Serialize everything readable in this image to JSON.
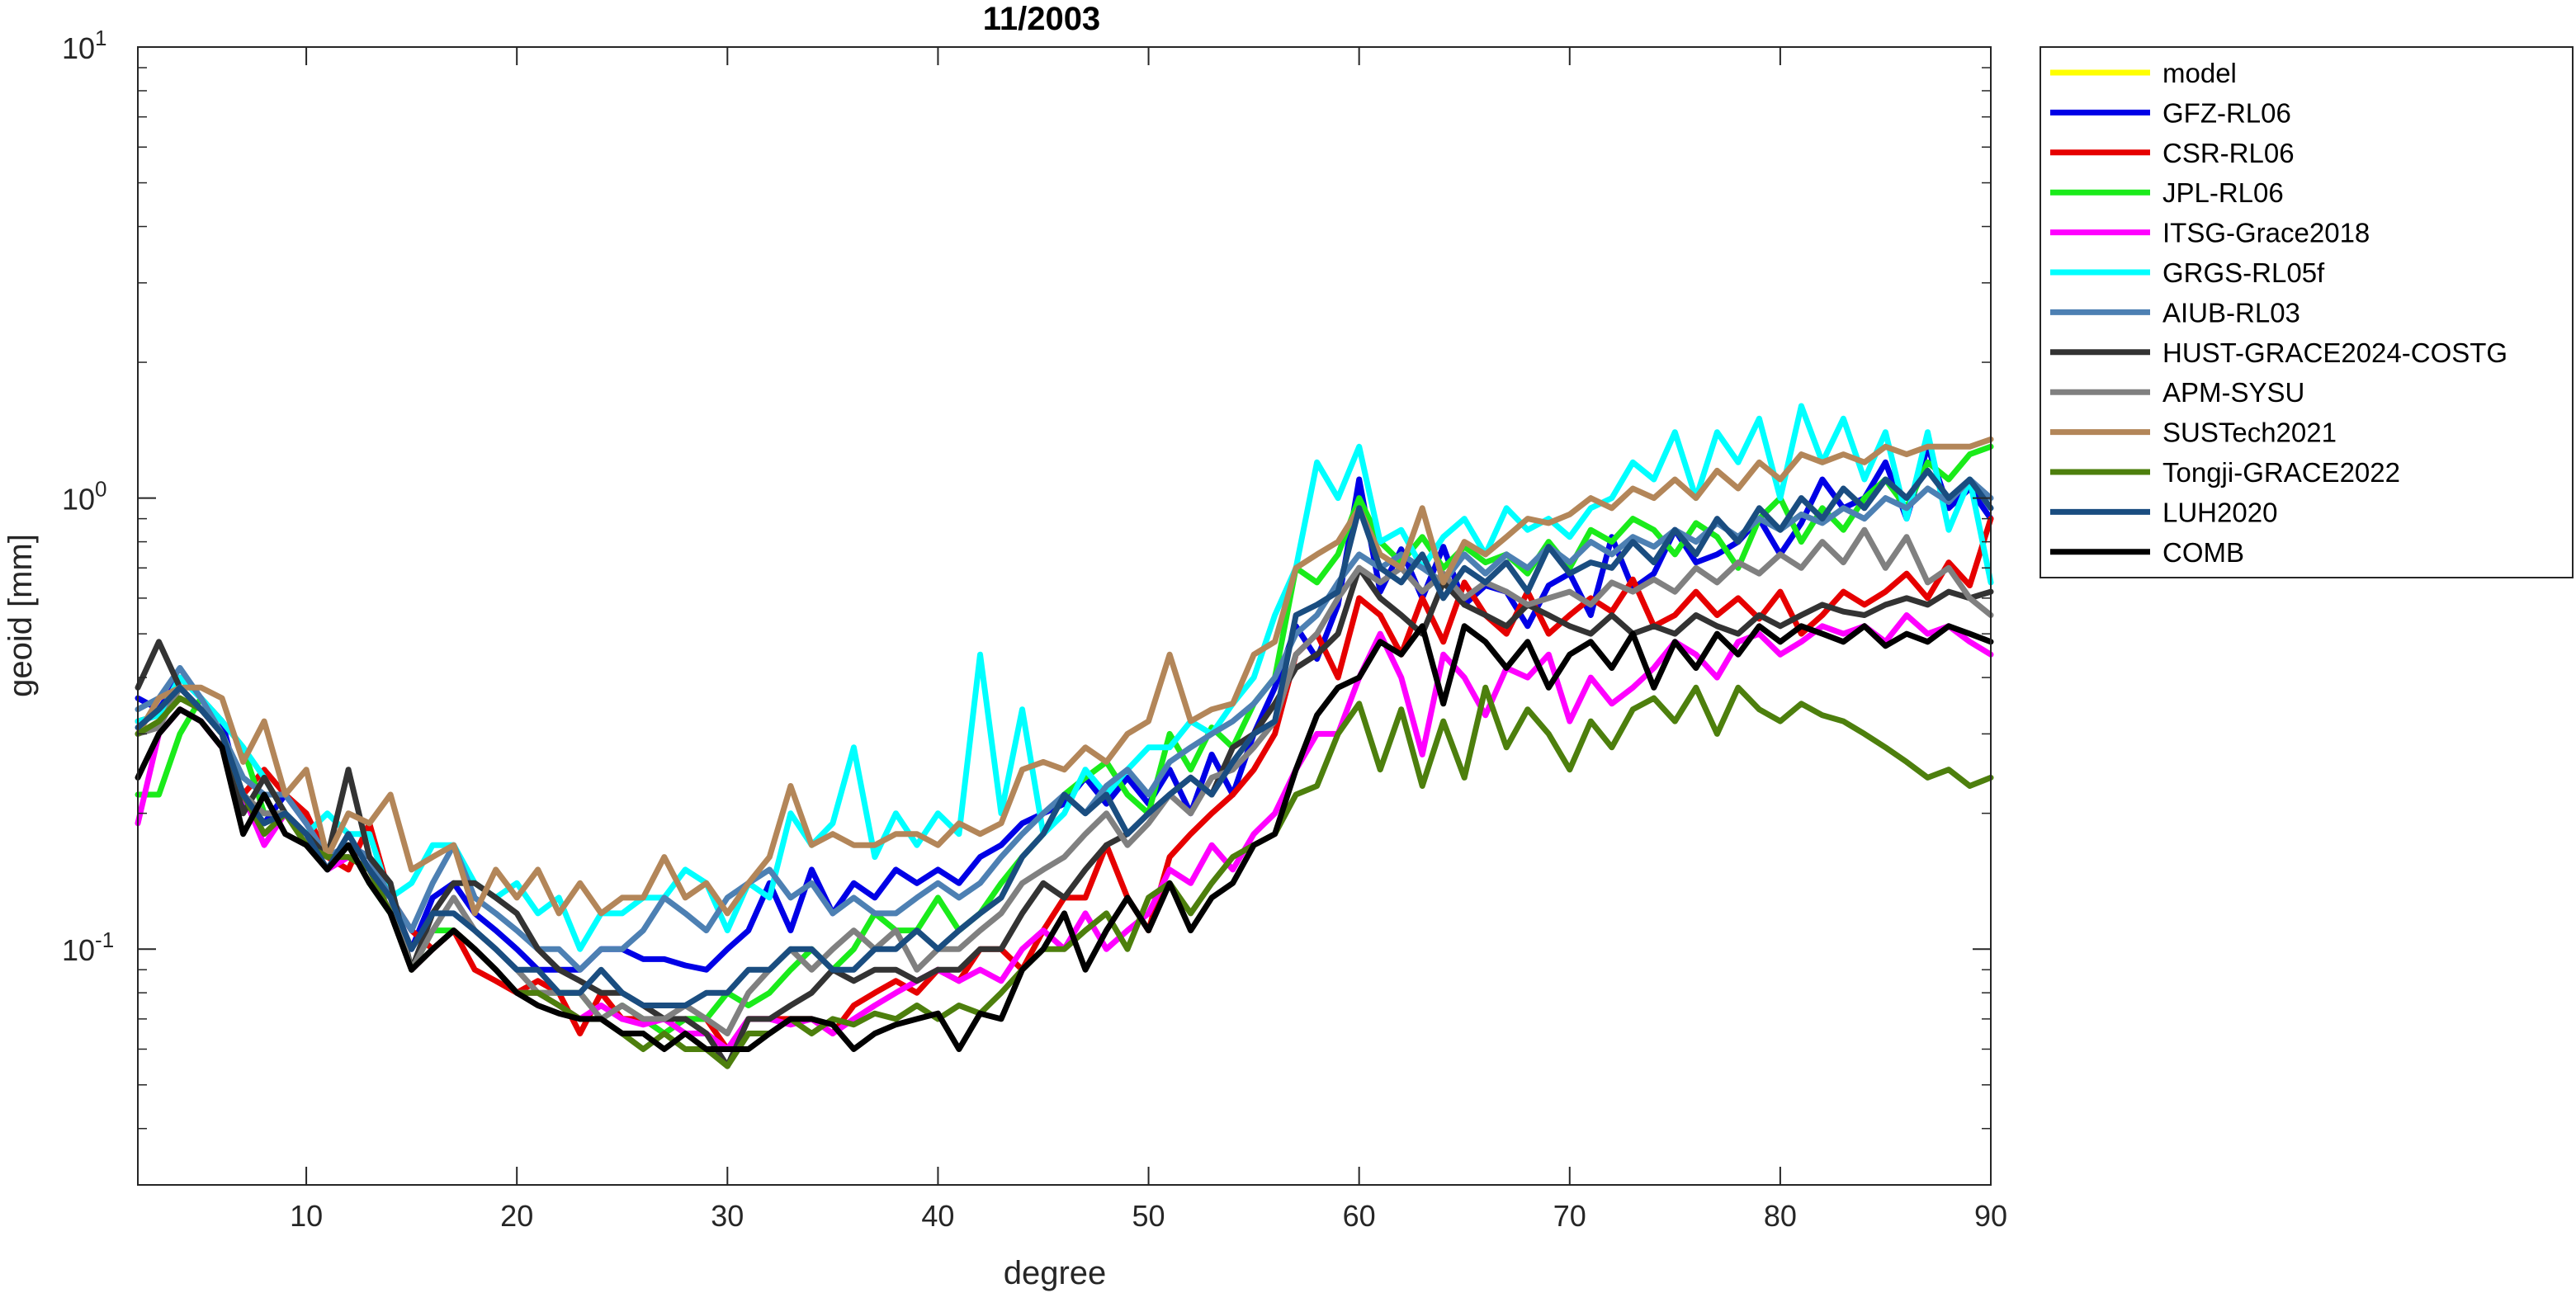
{
  "chart_data": {
    "type": "line",
    "title": "11/2003",
    "xlabel": "degree",
    "ylabel": "geoid [mm]",
    "yscale": "log",
    "xlim": [
      2,
      90
    ],
    "ylim": [
      0.03,
      10
    ],
    "xticks": [
      10,
      20,
      30,
      40,
      50,
      60,
      70,
      80,
      90
    ],
    "yticks": [
      {
        "value": 0.1,
        "base": "10",
        "exp": "-1"
      },
      {
        "value": 1,
        "base": "10",
        "exp": "0"
      },
      {
        "value": 10,
        "base": "10",
        "exp": "1"
      }
    ],
    "grid": false,
    "legend_position": "outside-right-top",
    "x_start": 2,
    "series": [
      {
        "name": "model",
        "color": "#ffff00",
        "values": []
      },
      {
        "name": "GFZ-RL06",
        "color": "#0000e6",
        "values": [
          0.36,
          0.34,
          0.4,
          0.36,
          0.32,
          0.21,
          0.19,
          0.22,
          0.19,
          0.16,
          0.17,
          0.16,
          0.13,
          0.1,
          0.13,
          0.14,
          0.12,
          0.11,
          0.1,
          0.09,
          0.09,
          0.09,
          0.1,
          0.1,
          0.095,
          0.095,
          0.092,
          0.09,
          0.1,
          0.11,
          0.14,
          0.11,
          0.15,
          0.12,
          0.14,
          0.13,
          0.15,
          0.14,
          0.15,
          0.14,
          0.16,
          0.17,
          0.19,
          0.2,
          0.21,
          0.24,
          0.21,
          0.24,
          0.21,
          0.25,
          0.2,
          0.27,
          0.22,
          0.3,
          0.38,
          0.52,
          0.44,
          0.58,
          1.1,
          0.62,
          0.77,
          0.6,
          0.78,
          0.58,
          0.64,
          0.62,
          0.52,
          0.64,
          0.68,
          0.55,
          0.82,
          0.63,
          0.68,
          0.85,
          0.72,
          0.75,
          0.8,
          0.9,
          0.75,
          0.88,
          1.1,
          0.95,
          1.0,
          1.2,
          0.9,
          1.3,
          0.95,
          1.05,
          0.9
        ]
      },
      {
        "name": "CSR-RL06",
        "color": "#e60000",
        "values": [
          0.32,
          0.33,
          0.38,
          0.34,
          0.3,
          0.22,
          0.25,
          0.22,
          0.2,
          0.16,
          0.15,
          0.19,
          0.13,
          0.11,
          0.1,
          0.11,
          0.09,
          0.085,
          0.08,
          0.085,
          0.08,
          0.065,
          0.08,
          0.07,
          0.07,
          0.065,
          0.07,
          0.07,
          0.06,
          0.07,
          0.07,
          0.07,
          0.07,
          0.065,
          0.075,
          0.08,
          0.085,
          0.08,
          0.09,
          0.085,
          0.1,
          0.1,
          0.09,
          0.11,
          0.13,
          0.13,
          0.17,
          0.13,
          0.11,
          0.16,
          0.18,
          0.2,
          0.22,
          0.25,
          0.3,
          0.45,
          0.5,
          0.4,
          0.6,
          0.55,
          0.45,
          0.6,
          0.48,
          0.65,
          0.55,
          0.5,
          0.62,
          0.5,
          0.55,
          0.6,
          0.56,
          0.66,
          0.52,
          0.55,
          0.62,
          0.55,
          0.6,
          0.54,
          0.62,
          0.5,
          0.55,
          0.62,
          0.58,
          0.62,
          0.68,
          0.6,
          0.72,
          0.64,
          0.9
        ]
      },
      {
        "name": "JPL-RL06",
        "color": "#1aeb1a",
        "values": [
          0.22,
          0.22,
          0.3,
          0.36,
          0.32,
          0.28,
          0.2,
          0.2,
          0.18,
          0.15,
          0.17,
          0.14,
          0.12,
          0.09,
          0.11,
          0.11,
          0.1,
          0.09,
          0.08,
          0.08,
          0.08,
          0.08,
          0.07,
          0.075,
          0.07,
          0.065,
          0.07,
          0.07,
          0.08,
          0.075,
          0.08,
          0.09,
          0.1,
          0.09,
          0.1,
          0.12,
          0.11,
          0.11,
          0.13,
          0.11,
          0.12,
          0.14,
          0.16,
          0.18,
          0.22,
          0.24,
          0.26,
          0.22,
          0.2,
          0.3,
          0.25,
          0.31,
          0.28,
          0.35,
          0.4,
          0.7,
          0.65,
          0.75,
          1.0,
          0.8,
          0.72,
          0.82,
          0.7,
          0.78,
          0.72,
          0.75,
          0.68,
          0.8,
          0.7,
          0.85,
          0.8,
          0.9,
          0.85,
          0.75,
          0.88,
          0.82,
          0.7,
          0.9,
          1.0,
          0.8,
          0.95,
          0.85,
          1.0,
          1.1,
          0.95,
          1.2,
          1.1,
          1.25,
          1.3
        ]
      },
      {
        "name": "ITSG-Grace2018",
        "color": "#ff00ff",
        "values": [
          0.19,
          0.3,
          0.34,
          0.32,
          0.28,
          0.22,
          0.17,
          0.2,
          0.18,
          0.15,
          0.16,
          0.15,
          0.12,
          0.09,
          0.1,
          0.11,
          0.1,
          0.09,
          0.08,
          0.08,
          0.075,
          0.07,
          0.075,
          0.07,
          0.068,
          0.07,
          0.065,
          0.065,
          0.06,
          0.07,
          0.07,
          0.068,
          0.07,
          0.065,
          0.07,
          0.075,
          0.08,
          0.085,
          0.09,
          0.085,
          0.09,
          0.085,
          0.1,
          0.11,
          0.1,
          0.12,
          0.1,
          0.11,
          0.12,
          0.15,
          0.14,
          0.17,
          0.15,
          0.18,
          0.2,
          0.25,
          0.3,
          0.3,
          0.4,
          0.5,
          0.4,
          0.27,
          0.45,
          0.4,
          0.33,
          0.42,
          0.4,
          0.45,
          0.32,
          0.4,
          0.35,
          0.38,
          0.42,
          0.48,
          0.45,
          0.4,
          0.48,
          0.5,
          0.45,
          0.48,
          0.52,
          0.5,
          0.52,
          0.48,
          0.55,
          0.5,
          0.52,
          0.48,
          0.45
        ]
      },
      {
        "name": "GRGS-RL05f",
        "color": "#00ffff",
        "values": [
          0.32,
          0.33,
          0.4,
          0.36,
          0.32,
          0.28,
          0.24,
          0.2,
          0.18,
          0.2,
          0.18,
          0.18,
          0.13,
          0.14,
          0.17,
          0.17,
          0.14,
          0.13,
          0.14,
          0.12,
          0.13,
          0.1,
          0.12,
          0.12,
          0.13,
          0.13,
          0.15,
          0.14,
          0.11,
          0.14,
          0.13,
          0.2,
          0.17,
          0.19,
          0.28,
          0.16,
          0.2,
          0.17,
          0.2,
          0.18,
          0.45,
          0.2,
          0.34,
          0.18,
          0.2,
          0.25,
          0.22,
          0.25,
          0.28,
          0.28,
          0.32,
          0.3,
          0.35,
          0.4,
          0.55,
          0.7,
          1.2,
          1.0,
          1.3,
          0.8,
          0.85,
          0.7,
          0.82,
          0.9,
          0.75,
          0.95,
          0.85,
          0.9,
          0.82,
          0.95,
          1.0,
          1.2,
          1.1,
          1.4,
          1.0,
          1.4,
          1.2,
          1.5,
          1.0,
          1.6,
          1.2,
          1.5,
          1.1,
          1.4,
          0.9,
          1.4,
          0.85,
          1.1,
          0.65
        ]
      },
      {
        "name": "AIUB-RL03",
        "color": "#4d80b3",
        "values": [
          0.34,
          0.36,
          0.42,
          0.36,
          0.3,
          0.24,
          0.22,
          0.22,
          0.19,
          0.16,
          0.17,
          0.16,
          0.13,
          0.11,
          0.14,
          0.17,
          0.13,
          0.12,
          0.11,
          0.1,
          0.1,
          0.09,
          0.1,
          0.1,
          0.11,
          0.13,
          0.12,
          0.11,
          0.13,
          0.14,
          0.15,
          0.13,
          0.14,
          0.12,
          0.13,
          0.12,
          0.12,
          0.13,
          0.14,
          0.13,
          0.14,
          0.16,
          0.18,
          0.2,
          0.22,
          0.2,
          0.23,
          0.25,
          0.22,
          0.26,
          0.28,
          0.3,
          0.32,
          0.35,
          0.4,
          0.5,
          0.55,
          0.65,
          0.75,
          0.7,
          0.75,
          0.7,
          0.65,
          0.75,
          0.68,
          0.75,
          0.7,
          0.78,
          0.72,
          0.8,
          0.75,
          0.82,
          0.78,
          0.85,
          0.8,
          0.88,
          0.82,
          0.9,
          0.85,
          0.92,
          0.88,
          0.95,
          0.9,
          1.0,
          0.95,
          1.05,
          0.98,
          1.1,
          1.0
        ]
      },
      {
        "name": "HUST-GRACE2024-COSTG",
        "color": "#333333",
        "values": [
          0.38,
          0.48,
          0.38,
          0.34,
          0.3,
          0.2,
          0.24,
          0.2,
          0.18,
          0.16,
          0.25,
          0.16,
          0.14,
          0.09,
          0.12,
          0.14,
          0.14,
          0.13,
          0.12,
          0.1,
          0.09,
          0.085,
          0.08,
          0.08,
          0.075,
          0.07,
          0.07,
          0.065,
          0.055,
          0.07,
          0.07,
          0.075,
          0.08,
          0.09,
          0.085,
          0.09,
          0.09,
          0.085,
          0.09,
          0.09,
          0.1,
          0.1,
          0.12,
          0.14,
          0.13,
          0.15,
          0.17,
          0.18,
          0.2,
          0.22,
          0.24,
          0.22,
          0.28,
          0.3,
          0.35,
          0.42,
          0.45,
          0.5,
          0.7,
          0.6,
          0.55,
          0.5,
          0.65,
          0.58,
          0.55,
          0.52,
          0.58,
          0.55,
          0.52,
          0.5,
          0.55,
          0.5,
          0.52,
          0.5,
          0.55,
          0.52,
          0.5,
          0.55,
          0.52,
          0.55,
          0.58,
          0.56,
          0.55,
          0.58,
          0.6,
          0.58,
          0.62,
          0.6,
          0.62
        ]
      },
      {
        "name": "APM-SYSU",
        "color": "#808080",
        "values": [
          0.3,
          0.31,
          0.38,
          0.34,
          0.3,
          0.22,
          0.2,
          0.2,
          0.17,
          0.15,
          0.17,
          0.14,
          0.13,
          0.09,
          0.11,
          0.13,
          0.11,
          0.1,
          0.09,
          0.08,
          0.08,
          0.08,
          0.07,
          0.075,
          0.07,
          0.07,
          0.075,
          0.07,
          0.065,
          0.08,
          0.09,
          0.1,
          0.09,
          0.1,
          0.11,
          0.1,
          0.11,
          0.09,
          0.1,
          0.1,
          0.11,
          0.12,
          0.14,
          0.15,
          0.16,
          0.18,
          0.2,
          0.17,
          0.19,
          0.22,
          0.2,
          0.24,
          0.25,
          0.28,
          0.32,
          0.45,
          0.5,
          0.6,
          0.7,
          0.65,
          0.7,
          0.62,
          0.68,
          0.6,
          0.65,
          0.62,
          0.58,
          0.6,
          0.62,
          0.58,
          0.65,
          0.62,
          0.66,
          0.62,
          0.7,
          0.65,
          0.72,
          0.68,
          0.75,
          0.7,
          0.8,
          0.72,
          0.85,
          0.7,
          0.82,
          0.65,
          0.7,
          0.6,
          0.55
        ]
      },
      {
        "name": "SUSTech2021",
        "color": "#b38659",
        "values": [
          0.3,
          0.36,
          0.38,
          0.38,
          0.36,
          0.26,
          0.32,
          0.22,
          0.25,
          0.16,
          0.2,
          0.19,
          0.22,
          0.15,
          0.16,
          0.17,
          0.12,
          0.15,
          0.13,
          0.15,
          0.12,
          0.14,
          0.12,
          0.13,
          0.13,
          0.16,
          0.13,
          0.14,
          0.12,
          0.14,
          0.16,
          0.23,
          0.17,
          0.18,
          0.17,
          0.17,
          0.18,
          0.18,
          0.17,
          0.19,
          0.18,
          0.19,
          0.25,
          0.26,
          0.25,
          0.28,
          0.26,
          0.3,
          0.32,
          0.45,
          0.32,
          0.34,
          0.35,
          0.45,
          0.48,
          0.7,
          0.75,
          0.8,
          0.95,
          0.75,
          0.7,
          0.95,
          0.65,
          0.8,
          0.75,
          0.82,
          0.9,
          0.88,
          0.92,
          1.0,
          0.95,
          1.05,
          1.0,
          1.1,
          1.0,
          1.15,
          1.05,
          1.2,
          1.1,
          1.25,
          1.2,
          1.25,
          1.2,
          1.3,
          1.25,
          1.3,
          1.3,
          1.3,
          1.35
        ]
      },
      {
        "name": "Tongji-GRACE2022",
        "color": "#4d7f0d",
        "values": [
          0.3,
          0.32,
          0.36,
          0.34,
          0.3,
          0.22,
          0.18,
          0.2,
          0.17,
          0.16,
          0.16,
          0.15,
          0.12,
          0.09,
          0.1,
          0.11,
          0.1,
          0.09,
          0.08,
          0.08,
          0.075,
          0.07,
          0.07,
          0.065,
          0.06,
          0.065,
          0.06,
          0.06,
          0.055,
          0.065,
          0.065,
          0.07,
          0.065,
          0.07,
          0.068,
          0.072,
          0.07,
          0.075,
          0.07,
          0.075,
          0.072,
          0.08,
          0.09,
          0.1,
          0.1,
          0.11,
          0.12,
          0.1,
          0.13,
          0.14,
          0.12,
          0.14,
          0.16,
          0.17,
          0.18,
          0.22,
          0.23,
          0.3,
          0.35,
          0.25,
          0.34,
          0.23,
          0.32,
          0.24,
          0.38,
          0.28,
          0.34,
          0.3,
          0.25,
          0.32,
          0.28,
          0.34,
          0.36,
          0.32,
          0.38,
          0.3,
          0.38,
          0.34,
          0.32,
          0.35,
          0.33,
          0.32,
          0.3,
          0.28,
          0.26,
          0.24,
          0.25,
          0.23,
          0.24
        ]
      },
      {
        "name": "LUH2020",
        "color": "#1a4d80",
        "values": [
          0.31,
          0.34,
          0.38,
          0.34,
          0.3,
          0.22,
          0.19,
          0.2,
          0.18,
          0.15,
          0.18,
          0.15,
          0.13,
          0.1,
          0.12,
          0.12,
          0.11,
          0.1,
          0.09,
          0.09,
          0.08,
          0.08,
          0.09,
          0.08,
          0.075,
          0.075,
          0.075,
          0.08,
          0.08,
          0.09,
          0.09,
          0.1,
          0.1,
          0.09,
          0.09,
          0.1,
          0.1,
          0.11,
          0.1,
          0.11,
          0.12,
          0.13,
          0.16,
          0.18,
          0.22,
          0.2,
          0.22,
          0.18,
          0.2,
          0.22,
          0.24,
          0.22,
          0.26,
          0.3,
          0.32,
          0.55,
          0.58,
          0.62,
          0.95,
          0.7,
          0.65,
          0.75,
          0.6,
          0.7,
          0.65,
          0.72,
          0.62,
          0.78,
          0.68,
          0.72,
          0.7,
          0.8,
          0.72,
          0.85,
          0.75,
          0.9,
          0.8,
          0.95,
          0.85,
          1.0,
          0.9,
          1.05,
          0.95,
          1.1,
          1.0,
          1.15,
          1.0,
          1.1,
          0.95
        ]
      },
      {
        "name": "COMB",
        "color": "#000000",
        "values": [
          0.24,
          0.3,
          0.34,
          0.32,
          0.28,
          0.18,
          0.22,
          0.18,
          0.17,
          0.15,
          0.17,
          0.14,
          0.12,
          0.09,
          0.1,
          0.11,
          0.1,
          0.09,
          0.08,
          0.075,
          0.072,
          0.07,
          0.07,
          0.065,
          0.065,
          0.06,
          0.065,
          0.06,
          0.06,
          0.06,
          0.065,
          0.07,
          0.07,
          0.068,
          0.06,
          0.065,
          0.068,
          0.07,
          0.072,
          0.06,
          0.072,
          0.07,
          0.09,
          0.1,
          0.12,
          0.09,
          0.11,
          0.13,
          0.11,
          0.14,
          0.11,
          0.13,
          0.14,
          0.17,
          0.18,
          0.25,
          0.33,
          0.38,
          0.4,
          0.48,
          0.45,
          0.52,
          0.35,
          0.52,
          0.48,
          0.42,
          0.48,
          0.38,
          0.45,
          0.48,
          0.42,
          0.5,
          0.38,
          0.48,
          0.42,
          0.5,
          0.45,
          0.52,
          0.48,
          0.52,
          0.5,
          0.48,
          0.52,
          0.47,
          0.5,
          0.48,
          0.52,
          0.5,
          0.48
        ]
      }
    ]
  }
}
